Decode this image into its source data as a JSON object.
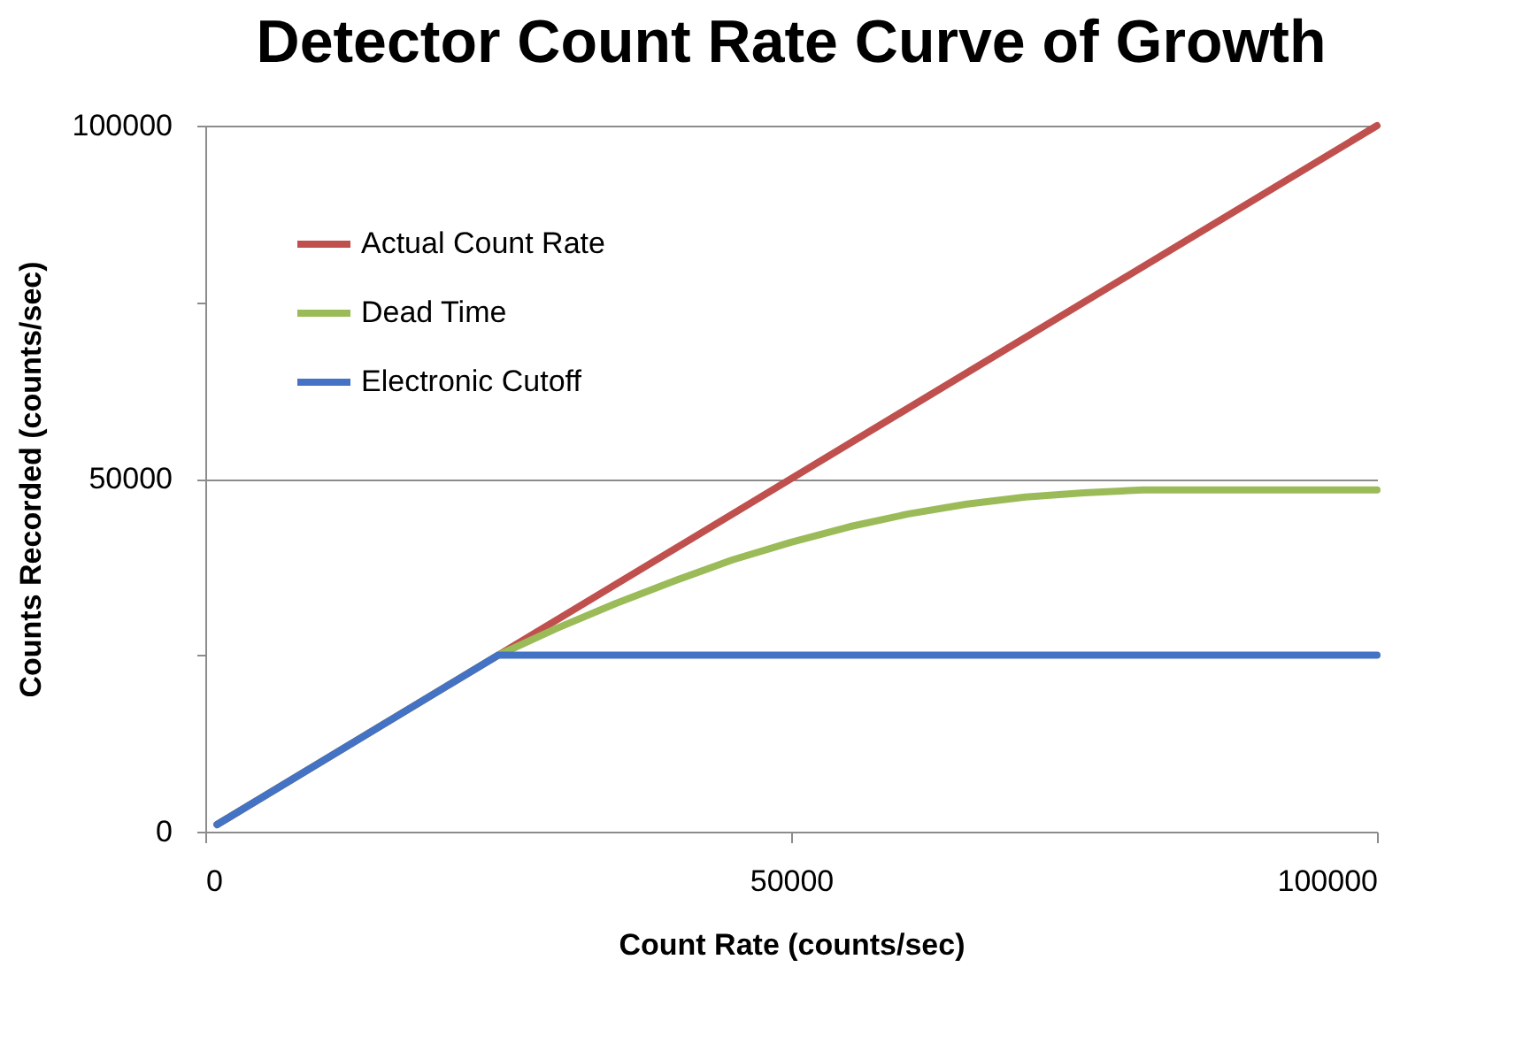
{
  "chart_data": {
    "type": "line",
    "title": "Detector Count Rate Curve of Growth",
    "xlabel": "Count Rate (counts/sec)",
    "ylabel": "Counts Recorded (counts/sec)",
    "xlim": [
      0,
      100000
    ],
    "xticks": [
      0,
      50000,
      100000
    ],
    "ylim": [
      0,
      100000
    ],
    "yticks": [
      0,
      {
        "value": 25000,
        "label": null
      },
      50000,
      {
        "value": 75000,
        "label": null
      },
      100000
    ],
    "grid": "y",
    "legend": "top left",
    "marker": "none",
    "line_style": "solid",
    "series": [
      {
        "name": "Actual Count Rate",
        "color": "#c0504d",
        "x": [
          1000,
          100000
        ],
        "values": [
          1000,
          100000
        ]
      },
      {
        "name": "Dead Time",
        "color": "#9bbb59",
        "x": [
          1000,
          25000,
          30000,
          35000,
          40000,
          45000,
          50000,
          55000,
          60000,
          65000,
          70000,
          75000,
          80000,
          90000,
          100000
        ],
        "values": [
          1000,
          25000,
          28800,
          32300,
          35500,
          38500,
          41000,
          43200,
          45000,
          46400,
          47400,
          48000,
          48400,
          48400,
          48400
        ]
      },
      {
        "name": "Electronic Cutoff",
        "color": "#4472c4",
        "x": [
          1000,
          25000,
          100000
        ],
        "values": [
          1000,
          25000,
          25000
        ]
      }
    ]
  }
}
